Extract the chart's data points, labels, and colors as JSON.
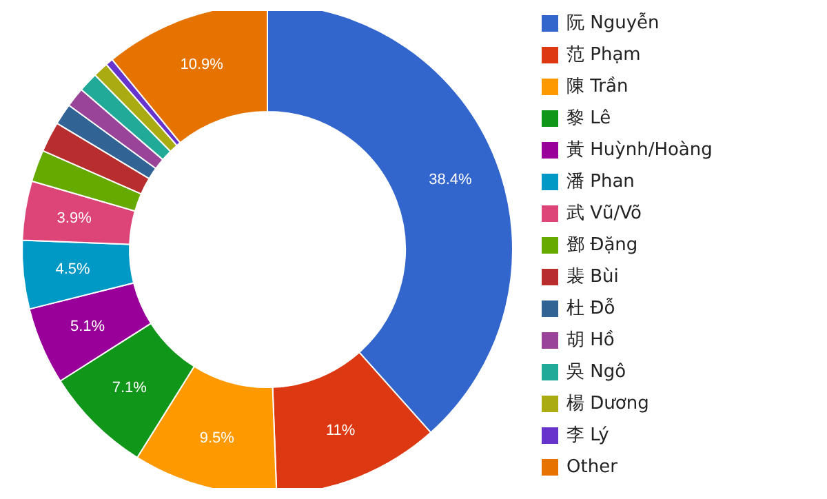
{
  "chart_data": {
    "type": "donut",
    "categories": [
      "阮 Nguyễn",
      "范 Phạm",
      "陳 Trần",
      "黎 Lê",
      "黃 Huỳnh/Hoàng",
      "潘 Phan",
      "武 Vũ/Võ",
      "鄧 Đặng",
      "裴 Bùi",
      "杜 Đỗ",
      "胡 Hồ",
      "吳 Ngô",
      "楊 Dương",
      "李 Lý",
      "Other"
    ],
    "values": [
      38.4,
      11,
      9.5,
      7.1,
      5.1,
      4.5,
      3.9,
      2.1,
      2.0,
      1.4,
      1.3,
      1.3,
      1.0,
      0.5,
      10.9
    ],
    "colors": [
      "#3366cc",
      "#dc3912",
      "#ff9900",
      "#109618",
      "#990099",
      "#0099c6",
      "#dd4477",
      "#66aa00",
      "#b82e2e",
      "#316395",
      "#994499",
      "#22aa99",
      "#aaaa11",
      "#6633cc",
      "#e67300"
    ],
    "value_labels": [
      "38.4%",
      "11%",
      "9.5%",
      "7.1%",
      "5.1%",
      "4.5%",
      "3.9%",
      null,
      null,
      null,
      null,
      null,
      null,
      null,
      "10.9%"
    ],
    "legend": "right"
  }
}
